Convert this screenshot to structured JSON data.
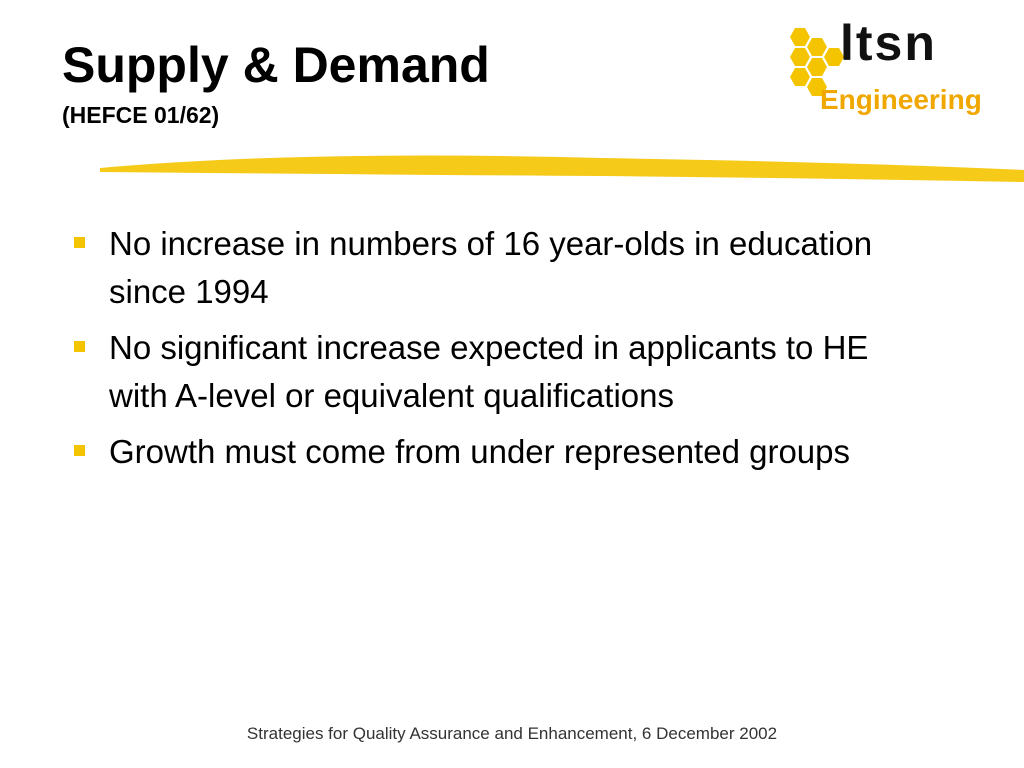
{
  "header": {
    "title": "Supply & Demand",
    "subtitle": "(HEFCE 01/62)"
  },
  "logo": {
    "name": "ltsn",
    "tagline": "Engineering"
  },
  "bullets": [
    "No increase in numbers of 16 year-olds in education since 1994",
    "No significant increase expected in applicants to HE with A-level or equivalent qualifications",
    "Growth must come from under represented groups"
  ],
  "footer": "Strategies for Quality Assurance and Enhancement, 6 December 2002"
}
